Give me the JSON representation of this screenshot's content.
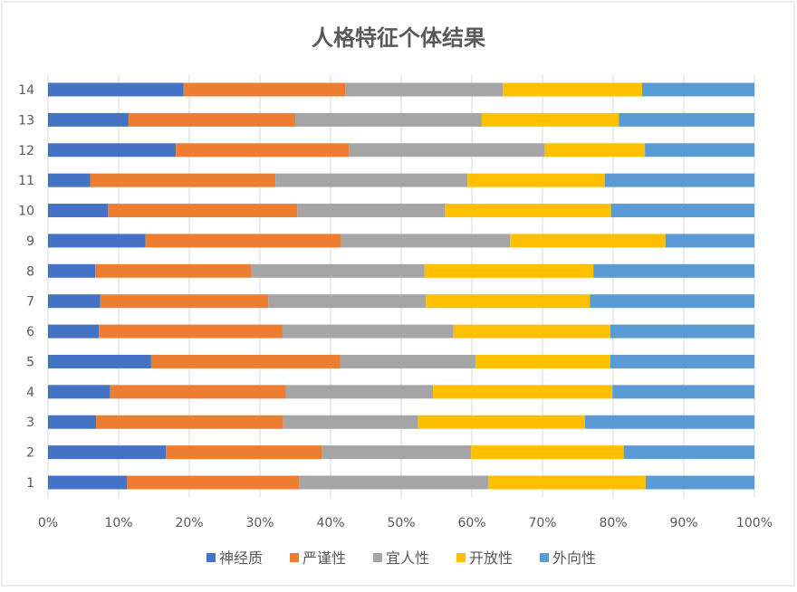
{
  "chart_data": {
    "type": "bar",
    "orientation": "horizontal",
    "stacked": "percent",
    "title": "人格特征个体结果",
    "xlabel": "",
    "ylabel": "",
    "xlim": [
      0,
      100
    ],
    "x_ticks": [
      "0%",
      "10%",
      "20%",
      "30%",
      "40%",
      "50%",
      "60%",
      "70%",
      "80%",
      "90%",
      "100%"
    ],
    "categories": [
      "1",
      "2",
      "3",
      "4",
      "5",
      "6",
      "7",
      "8",
      "9",
      "10",
      "11",
      "12",
      "13",
      "14"
    ],
    "grid": "vertical",
    "legend_position": "bottom",
    "series": [
      {
        "name": "神经质",
        "color": "#4472C4",
        "values": [
          11.2,
          16.7,
          6.8,
          8.8,
          14.6,
          7.2,
          7.4,
          6.7,
          13.8,
          8.5,
          6.0,
          18.1,
          11.4,
          19.2
        ]
      },
      {
        "name": "严谨性",
        "color": "#ED7D31",
        "values": [
          24.4,
          22.1,
          26.5,
          24.9,
          26.8,
          26.0,
          23.8,
          22.1,
          27.7,
          26.8,
          26.2,
          24.5,
          23.6,
          22.9
        ]
      },
      {
        "name": "宜人性",
        "color": "#A5A5A5",
        "values": [
          26.7,
          21.1,
          19.1,
          20.8,
          19.1,
          24.2,
          22.3,
          24.5,
          23.9,
          20.9,
          27.2,
          27.7,
          26.4,
          22.3
        ]
      },
      {
        "name": "开放性",
        "color": "#FFC000",
        "values": [
          22.3,
          21.6,
          23.6,
          25.4,
          19.1,
          22.2,
          23.2,
          23.9,
          22.0,
          23.5,
          19.4,
          14.2,
          19.4,
          19.7
        ]
      },
      {
        "name": "外向性",
        "color": "#5B9BD5",
        "values": [
          15.4,
          18.5,
          24.0,
          20.1,
          20.4,
          20.4,
          23.3,
          22.8,
          12.6,
          20.3,
          21.2,
          15.5,
          19.2,
          15.9
        ]
      }
    ]
  }
}
